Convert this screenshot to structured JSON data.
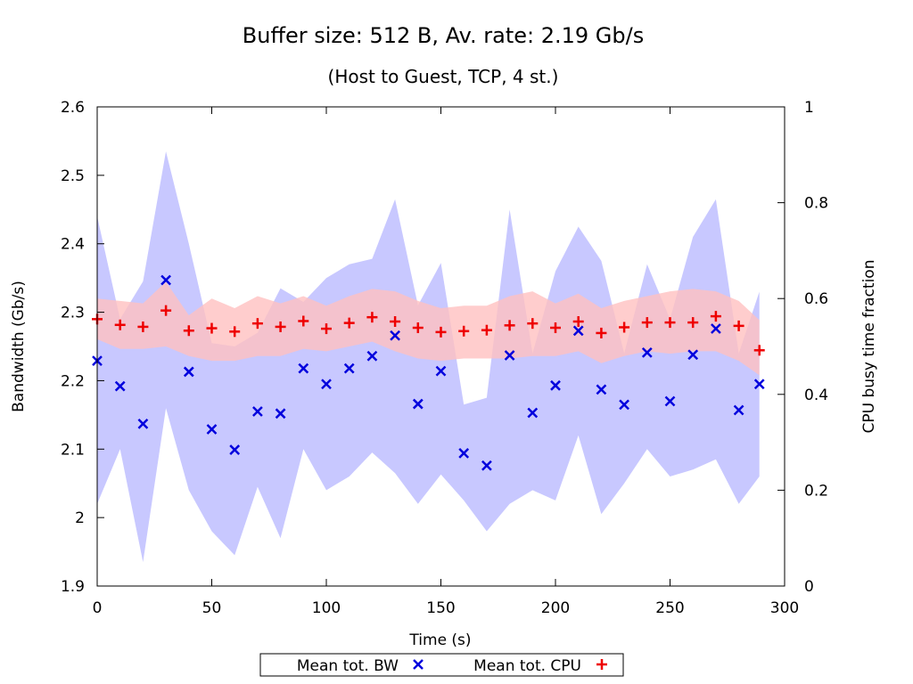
{
  "chart_data": {
    "type": "scatter",
    "title": "Buffer size: 512 B, Av. rate: 2.19 Gb/s",
    "subtitle": "(Host to Guest, TCP, 4 st.)",
    "xlabel": "Time (s)",
    "ylabel": "Bandwidth (Gb/s)",
    "y2label": "CPU busy time fraction",
    "xlim": [
      0,
      300
    ],
    "ylim": [
      1.9,
      2.6
    ],
    "y2lim": [
      0,
      1
    ],
    "xticks": [
      "0",
      "50",
      "100",
      "150",
      "200",
      "250",
      "300"
    ],
    "yticks": [
      "1.9",
      "2",
      "2.1",
      "2.2",
      "2.3",
      "2.4",
      "2.5",
      "2.6"
    ],
    "y2ticks": [
      "0",
      "0.2",
      "0.4",
      "0.6",
      "0.8",
      "1"
    ],
    "grid": false,
    "legend_position": "bottom-center",
    "x": [
      0,
      10,
      20,
      30,
      40,
      50,
      60,
      70,
      80,
      90,
      100,
      110,
      120,
      130,
      140,
      150,
      160,
      170,
      180,
      190,
      200,
      210,
      220,
      230,
      240,
      250,
      260,
      270,
      280,
      289
    ],
    "series": [
      {
        "name": "Mean tot. BW",
        "axis": "left",
        "marker": "x",
        "color": "#0000dd",
        "band_color": "#c8c8ff",
        "values": [
          2.229,
          2.192,
          2.137,
          2.347,
          2.213,
          2.129,
          2.099,
          2.155,
          2.152,
          2.218,
          2.195,
          2.218,
          2.236,
          2.266,
          2.166,
          2.214,
          2.094,
          2.076,
          2.237,
          2.153,
          2.193,
          2.273,
          2.187,
          2.165,
          2.241,
          2.17,
          2.238,
          2.276,
          2.157,
          2.195
        ],
        "upper": [
          2.44,
          2.29,
          2.345,
          2.535,
          2.4,
          2.255,
          2.25,
          2.27,
          2.335,
          2.315,
          2.35,
          2.37,
          2.378,
          2.465,
          2.31,
          2.372,
          2.165,
          2.175,
          2.45,
          2.24,
          2.36,
          2.425,
          2.375,
          2.24,
          2.37,
          2.29,
          2.41,
          2.465,
          2.24,
          2.33
        ],
        "lower": [
          2.02,
          2.1,
          1.935,
          2.16,
          2.04,
          1.98,
          1.945,
          2.045,
          1.97,
          2.1,
          2.04,
          2.06,
          2.095,
          2.065,
          2.02,
          2.063,
          2.025,
          1.98,
          2.02,
          2.04,
          2.025,
          2.12,
          2.005,
          2.05,
          2.1,
          2.06,
          2.07,
          2.085,
          2.02,
          2.06
        ]
      },
      {
        "name": "Mean tot. CPU",
        "axis": "right",
        "marker": "+",
        "color": "#ee0000",
        "band_color": "#ffc0c0",
        "values": [
          0.557,
          0.545,
          0.541,
          0.575,
          0.533,
          0.538,
          0.531,
          0.548,
          0.541,
          0.553,
          0.537,
          0.549,
          0.561,
          0.552,
          0.539,
          0.53,
          0.532,
          0.534,
          0.544,
          0.548,
          0.539,
          0.552,
          0.528,
          0.54,
          0.55,
          0.55,
          0.55,
          0.563,
          0.543,
          0.492
        ],
        "upper": [
          0.6,
          0.595,
          0.59,
          0.635,
          0.565,
          0.6,
          0.58,
          0.605,
          0.59,
          0.605,
          0.585,
          0.605,
          0.62,
          0.615,
          0.595,
          0.58,
          0.585,
          0.585,
          0.605,
          0.615,
          0.59,
          0.61,
          0.58,
          0.595,
          0.605,
          0.615,
          0.62,
          0.615,
          0.595,
          0.555
        ],
        "lower": [
          0.515,
          0.495,
          0.495,
          0.5,
          0.48,
          0.47,
          0.47,
          0.48,
          0.48,
          0.495,
          0.49,
          0.5,
          0.51,
          0.49,
          0.475,
          0.47,
          0.475,
          0.475,
          0.475,
          0.48,
          0.48,
          0.49,
          0.465,
          0.48,
          0.49,
          0.485,
          0.49,
          0.49,
          0.47,
          0.44
        ]
      }
    ]
  }
}
